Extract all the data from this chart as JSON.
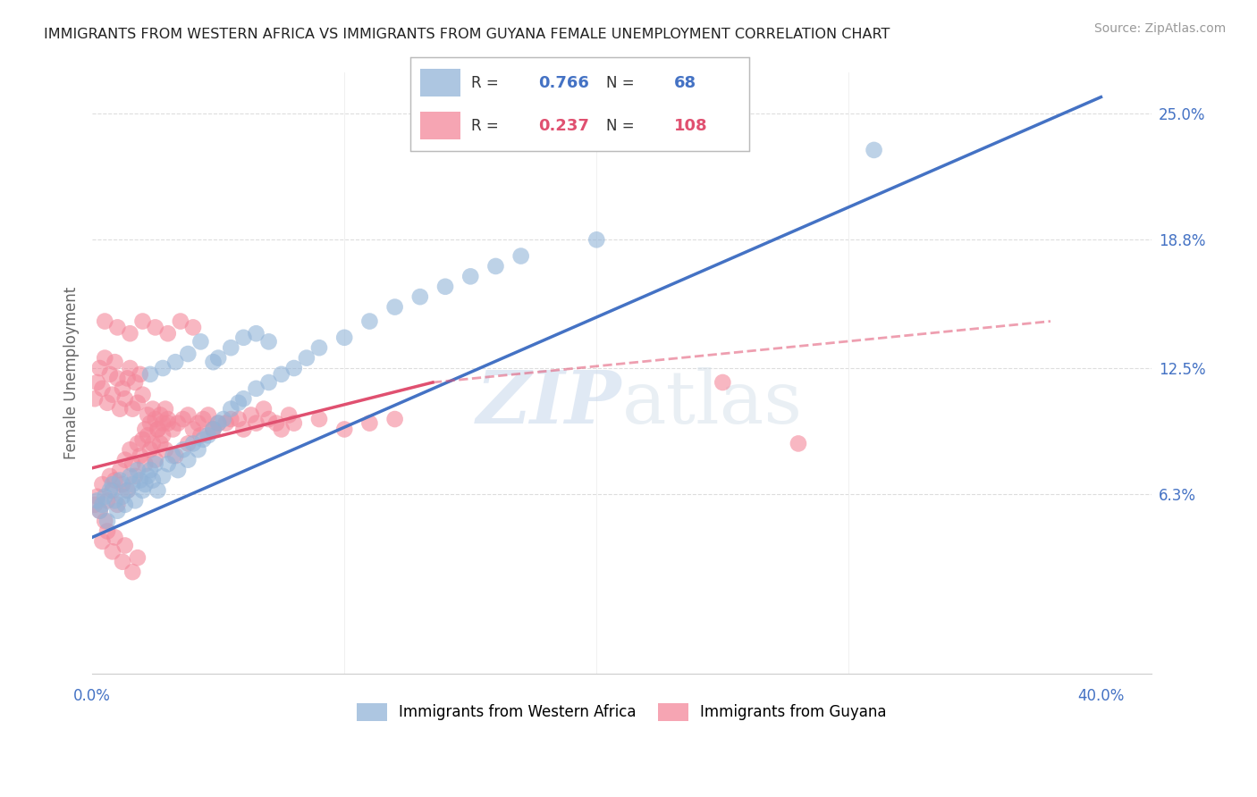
{
  "title": "IMMIGRANTS FROM WESTERN AFRICA VS IMMIGRANTS FROM GUYANA FEMALE UNEMPLOYMENT CORRELATION CHART",
  "source_text": "Source: ZipAtlas.com",
  "ylabel": "Female Unemployment",
  "xlim": [
    0.0,
    0.42
  ],
  "ylim": [
    -0.025,
    0.27
  ],
  "ytick_positions": [
    0.063,
    0.125,
    0.188,
    0.25
  ],
  "ytick_labels": [
    "6.3%",
    "12.5%",
    "18.8%",
    "25.0%"
  ],
  "legend1_R": "0.766",
  "legend1_N": "68",
  "legend2_R": "0.237",
  "legend2_N": "108",
  "blue_color": "#92B4D8",
  "pink_color": "#F4879A",
  "blue_line_color": "#4472C4",
  "pink_line_color": "#E05070",
  "blue_line": [
    0.0,
    0.4,
    0.042,
    0.258
  ],
  "pink_line_solid": [
    0.0,
    0.135,
    0.076,
    0.118
  ],
  "pink_line_dash": [
    0.135,
    0.38,
    0.118,
    0.148
  ],
  "blue_scatter_x": [
    0.002,
    0.003,
    0.004,
    0.005,
    0.006,
    0.007,
    0.008,
    0.009,
    0.01,
    0.011,
    0.012,
    0.013,
    0.014,
    0.015,
    0.016,
    0.017,
    0.018,
    0.019,
    0.02,
    0.021,
    0.022,
    0.023,
    0.024,
    0.025,
    0.026,
    0.028,
    0.03,
    0.032,
    0.034,
    0.036,
    0.038,
    0.04,
    0.042,
    0.044,
    0.046,
    0.048,
    0.05,
    0.052,
    0.055,
    0.058,
    0.06,
    0.065,
    0.07,
    0.075,
    0.08,
    0.085,
    0.09,
    0.1,
    0.11,
    0.12,
    0.13,
    0.14,
    0.15,
    0.16,
    0.17,
    0.05,
    0.055,
    0.06,
    0.065,
    0.07,
    0.023,
    0.028,
    0.033,
    0.038,
    0.043,
    0.048,
    0.31,
    0.2
  ],
  "blue_scatter_y": [
    0.06,
    0.055,
    0.058,
    0.062,
    0.05,
    0.065,
    0.068,
    0.06,
    0.055,
    0.07,
    0.062,
    0.058,
    0.065,
    0.072,
    0.068,
    0.06,
    0.075,
    0.07,
    0.065,
    0.068,
    0.072,
    0.075,
    0.07,
    0.078,
    0.065,
    0.072,
    0.078,
    0.082,
    0.075,
    0.085,
    0.08,
    0.088,
    0.085,
    0.09,
    0.092,
    0.095,
    0.098,
    0.1,
    0.105,
    0.108,
    0.11,
    0.115,
    0.118,
    0.122,
    0.125,
    0.13,
    0.135,
    0.14,
    0.148,
    0.155,
    0.16,
    0.165,
    0.17,
    0.175,
    0.18,
    0.13,
    0.135,
    0.14,
    0.142,
    0.138,
    0.122,
    0.125,
    0.128,
    0.132,
    0.138,
    0.128,
    0.232,
    0.188
  ],
  "pink_scatter_x": [
    0.001,
    0.002,
    0.003,
    0.004,
    0.005,
    0.006,
    0.007,
    0.008,
    0.009,
    0.01,
    0.011,
    0.012,
    0.013,
    0.014,
    0.015,
    0.016,
    0.017,
    0.018,
    0.019,
    0.02,
    0.021,
    0.022,
    0.023,
    0.024,
    0.025,
    0.026,
    0.027,
    0.028,
    0.029,
    0.03,
    0.001,
    0.002,
    0.003,
    0.004,
    0.005,
    0.006,
    0.007,
    0.008,
    0.009,
    0.01,
    0.011,
    0.012,
    0.013,
    0.014,
    0.015,
    0.016,
    0.017,
    0.018,
    0.019,
    0.02,
    0.021,
    0.022,
    0.023,
    0.024,
    0.025,
    0.026,
    0.027,
    0.028,
    0.029,
    0.03,
    0.032,
    0.034,
    0.036,
    0.038,
    0.04,
    0.042,
    0.044,
    0.046,
    0.048,
    0.05,
    0.055,
    0.06,
    0.065,
    0.07,
    0.075,
    0.08,
    0.09,
    0.1,
    0.11,
    0.12,
    0.033,
    0.038,
    0.043,
    0.048,
    0.053,
    0.058,
    0.063,
    0.068,
    0.073,
    0.078,
    0.005,
    0.01,
    0.015,
    0.02,
    0.025,
    0.03,
    0.035,
    0.04,
    0.25,
    0.28,
    0.004,
    0.008,
    0.012,
    0.016,
    0.006,
    0.009,
    0.013,
    0.018
  ],
  "pink_scatter_y": [
    0.058,
    0.062,
    0.055,
    0.068,
    0.05,
    0.06,
    0.072,
    0.065,
    0.07,
    0.058,
    0.075,
    0.068,
    0.08,
    0.065,
    0.085,
    0.078,
    0.072,
    0.088,
    0.082,
    0.09,
    0.078,
    0.092,
    0.085,
    0.088,
    0.08,
    0.095,
    0.088,
    0.092,
    0.085,
    0.098,
    0.11,
    0.118,
    0.125,
    0.115,
    0.13,
    0.108,
    0.122,
    0.112,
    0.128,
    0.12,
    0.105,
    0.115,
    0.11,
    0.12,
    0.125,
    0.105,
    0.118,
    0.108,
    0.122,
    0.112,
    0.095,
    0.102,
    0.098,
    0.105,
    0.1,
    0.095,
    0.102,
    0.098,
    0.105,
    0.1,
    0.095,
    0.098,
    0.1,
    0.102,
    0.095,
    0.098,
    0.1,
    0.102,
    0.095,
    0.098,
    0.1,
    0.095,
    0.098,
    0.1,
    0.095,
    0.098,
    0.1,
    0.095,
    0.098,
    0.1,
    0.082,
    0.088,
    0.092,
    0.095,
    0.098,
    0.1,
    0.102,
    0.105,
    0.098,
    0.102,
    0.148,
    0.145,
    0.142,
    0.148,
    0.145,
    0.142,
    0.148,
    0.145,
    0.118,
    0.088,
    0.04,
    0.035,
    0.03,
    0.025,
    0.045,
    0.042,
    0.038,
    0.032
  ]
}
